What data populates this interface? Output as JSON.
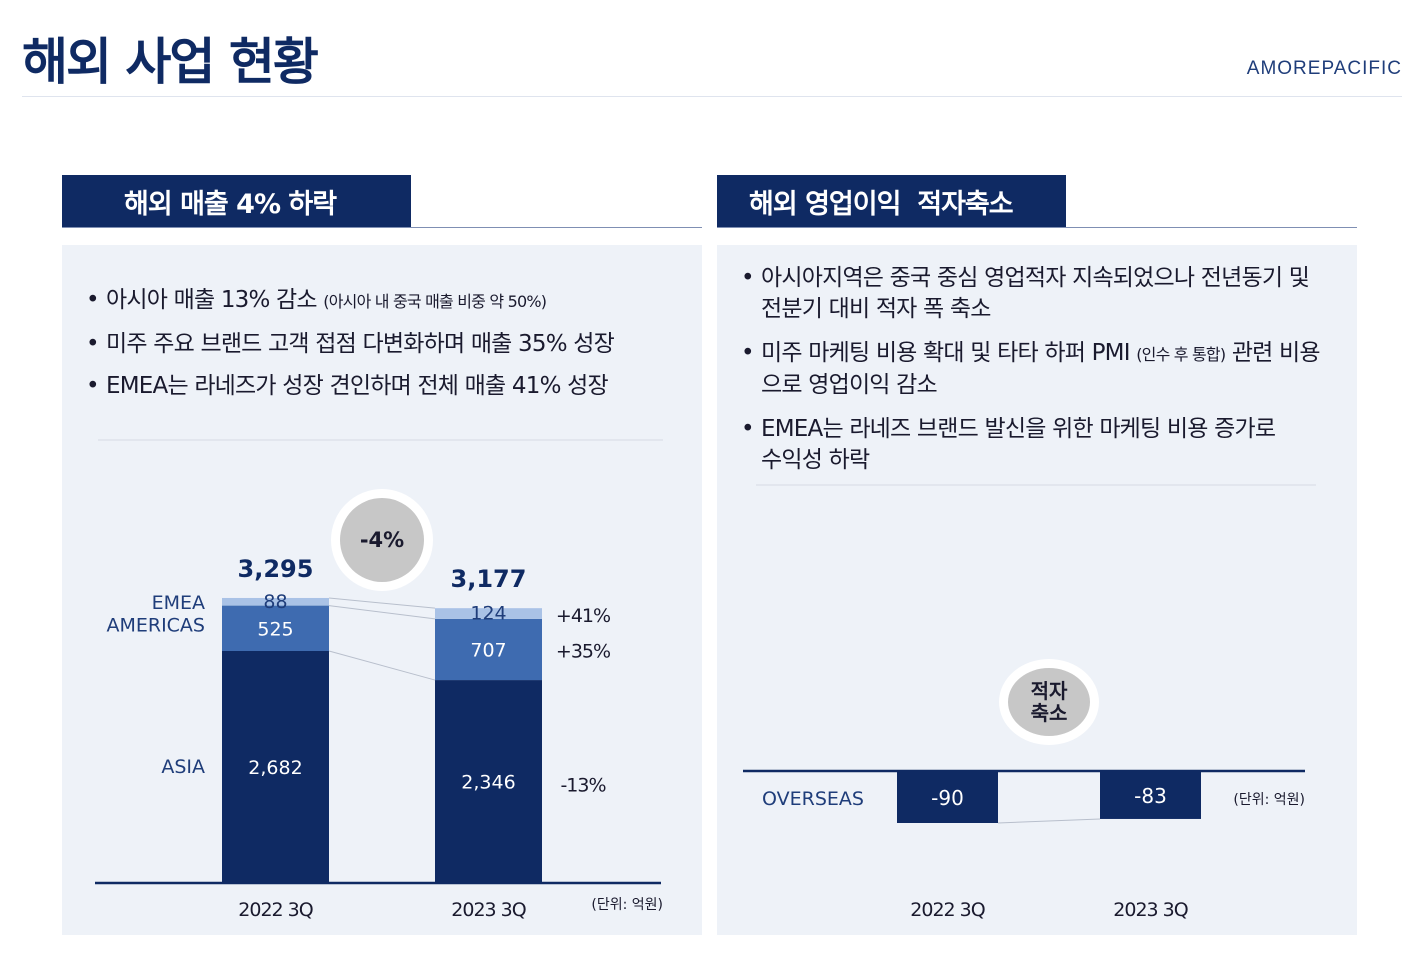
{
  "header": {
    "title": "해외 사업 현황",
    "brand": "AMOREPACIFIC"
  },
  "left": {
    "heading": "해외 매출 4% 하락",
    "bullets": [
      {
        "text": "아시아 매출 13% 감소",
        "note": "(아시아 내 중국 매출 비중 약 50%)"
      },
      {
        "text": "미주 주요 브랜드 고객 접점 다변화하며 매출 35% 성장"
      },
      {
        "text": "EMEA는 라네즈가 성장 견인하며 전체 매출 41% 성장"
      }
    ],
    "badge": "-4%"
  },
  "right": {
    "heading": "해외 영업이익  적자축소",
    "bullets": [
      {
        "line1": "아시아지역은 중국 중심 영업적자 지속되었으나 전년동기 및",
        "line2": "전분기 대비 적자 폭 축소"
      },
      {
        "line1": "미주 마케팅 비용 확대 및 타타 하퍼 PMI",
        "note": "(인수 후 통합)",
        "line1b": "관련 비용",
        "line2": "으로 영업이익 감소"
      },
      {
        "line1": "EMEA는 라네즈 브랜드 발신을 위한 마케팅 비용 증가로",
        "line2": "수익성 하락"
      }
    ],
    "badge_line1": "적자",
    "badge_line2": "축소"
  },
  "chart_data": [
    {
      "type": "bar",
      "stacked": true,
      "categories": [
        "2022 3Q",
        "2023 3Q"
      ],
      "series": [
        {
          "name": "ASIA",
          "values": [
            2682,
            2346
          ],
          "change": "-13%",
          "color": "#0f2a63"
        },
        {
          "name": "AMERICAS",
          "values": [
            525,
            707
          ],
          "change": "+35%",
          "color": "#3e6bb0"
        },
        {
          "name": "EMEA",
          "values": [
            88,
            124
          ],
          "change": "+41%",
          "color": "#a9c2e6"
        }
      ],
      "totals": [
        3295,
        3177
      ],
      "value_labels": [
        "2,682",
        "2,346",
        "525",
        "707",
        "88",
        "124"
      ],
      "total_labels": [
        "3,295",
        "3,177"
      ],
      "unit": "(단위: 억원)",
      "ylim": [
        0,
        3400
      ]
    },
    {
      "type": "bar",
      "categories": [
        "2022 3Q",
        "2023 3Q"
      ],
      "series": [
        {
          "name": "OVERSEAS",
          "values": [
            -90,
            -83
          ],
          "color": "#0f2a63"
        }
      ],
      "value_labels": [
        "-90",
        "-83"
      ],
      "unit": "(단위: 억원)",
      "ylim": [
        -90,
        0
      ]
    }
  ]
}
